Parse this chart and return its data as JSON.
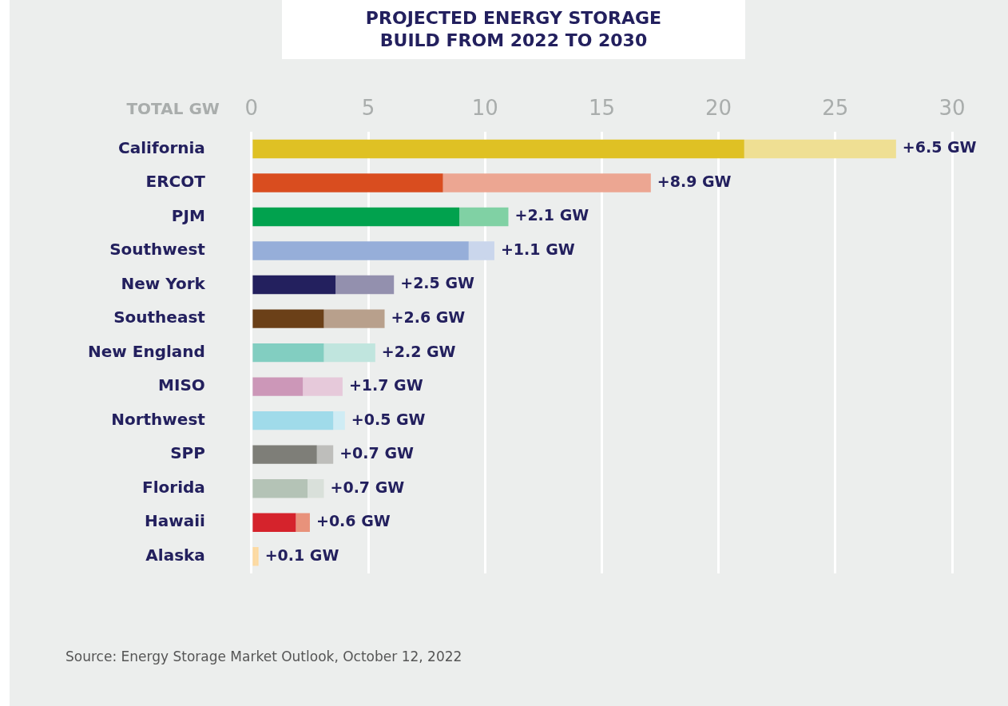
{
  "chart_data": {
    "type": "bar",
    "orientation": "horizontal",
    "stacked": true,
    "title": "PROJECTED ENERGY STORAGE BUILD FROM 2022 TO 2030",
    "xlabel": "TOTAL GW",
    "categories": [
      "California",
      "ERCOT",
      "PJM",
      "Southwest",
      "New York",
      "Southeast",
      "New England",
      "MISO",
      "Northwest",
      "SPP",
      "Florida",
      "Hawaii",
      "Alaska"
    ],
    "series": [
      {
        "colors": [
          "#dfc124",
          "#d94d1f",
          "#01a24e",
          "#96aed9",
          "#23205e",
          "#6b4018",
          "#82cec1",
          "#cc97b8",
          "#a0dbea",
          "#7e7e78",
          "#b4c3b6",
          "#d5232c",
          "#fdd9a0"
        ],
        "values": [
          21.1,
          8.2,
          8.9,
          9.3,
          3.6,
          3.1,
          3.1,
          2.2,
          3.5,
          2.8,
          2.4,
          1.9,
          0.2
        ]
      },
      {
        "colors": [
          "#efdf93",
          "#eca692",
          "#80d1a4",
          "#cad6ec",
          "#9390ae",
          "#b8a08c",
          "#c0e5de",
          "#e6c9da",
          "#cfecf4",
          "#bebebb",
          "#d9e0da",
          "#e8927b",
          "#fdd9a0"
        ],
        "values": [
          6.5,
          8.9,
          2.1,
          1.1,
          2.5,
          2.6,
          2.2,
          1.7,
          0.5,
          0.7,
          0.7,
          0.6,
          0.1
        ],
        "value_labels": [
          "+6.5 GW",
          "+8.9 GW",
          "+2.1 GW",
          "+1.1 GW",
          "+2.5 GW",
          "+2.6 GW",
          "+2.2 GW",
          "+1.7 GW",
          "+0.5 GW",
          "+0.7 GW",
          "+0.7 GW",
          "+0.6 GW",
          "+0.1 GW"
        ]
      }
    ],
    "xlim": [
      0,
      30
    ],
    "xticks": [
      0,
      5,
      10,
      15,
      20,
      25,
      30
    ],
    "grid": "x",
    "annotations": [
      "Source: Energy Storage Market Outlook, October 12, 2022"
    ]
  }
}
